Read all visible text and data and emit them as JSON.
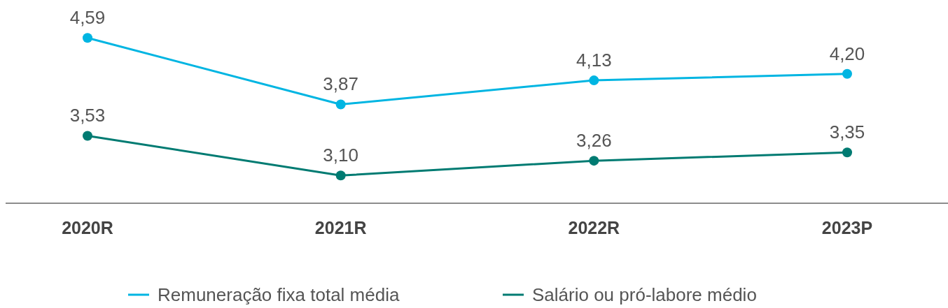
{
  "chart_data": {
    "type": "line",
    "categories": [
      "2020R",
      "2021R",
      "2022R",
      "2023P"
    ],
    "series": [
      {
        "name": "Remuneração fixa total média",
        "color": "#00b5e2",
        "values": [
          4.59,
          3.87,
          4.13,
          4.2
        ],
        "value_labels": [
          "4,59",
          "3,87",
          "4,13",
          "4,20"
        ]
      },
      {
        "name": "Salário ou pró-labore médio",
        "color": "#007b72",
        "values": [
          3.53,
          3.1,
          3.26,
          3.35
        ],
        "value_labels": [
          "3,53",
          "3,10",
          "3,26",
          "3,35"
        ]
      }
    ],
    "ylim": [
      2.8,
      5.0
    ],
    "tick_labels": "x",
    "legend": "bottom",
    "marker": "circle",
    "line_style": "solid"
  }
}
